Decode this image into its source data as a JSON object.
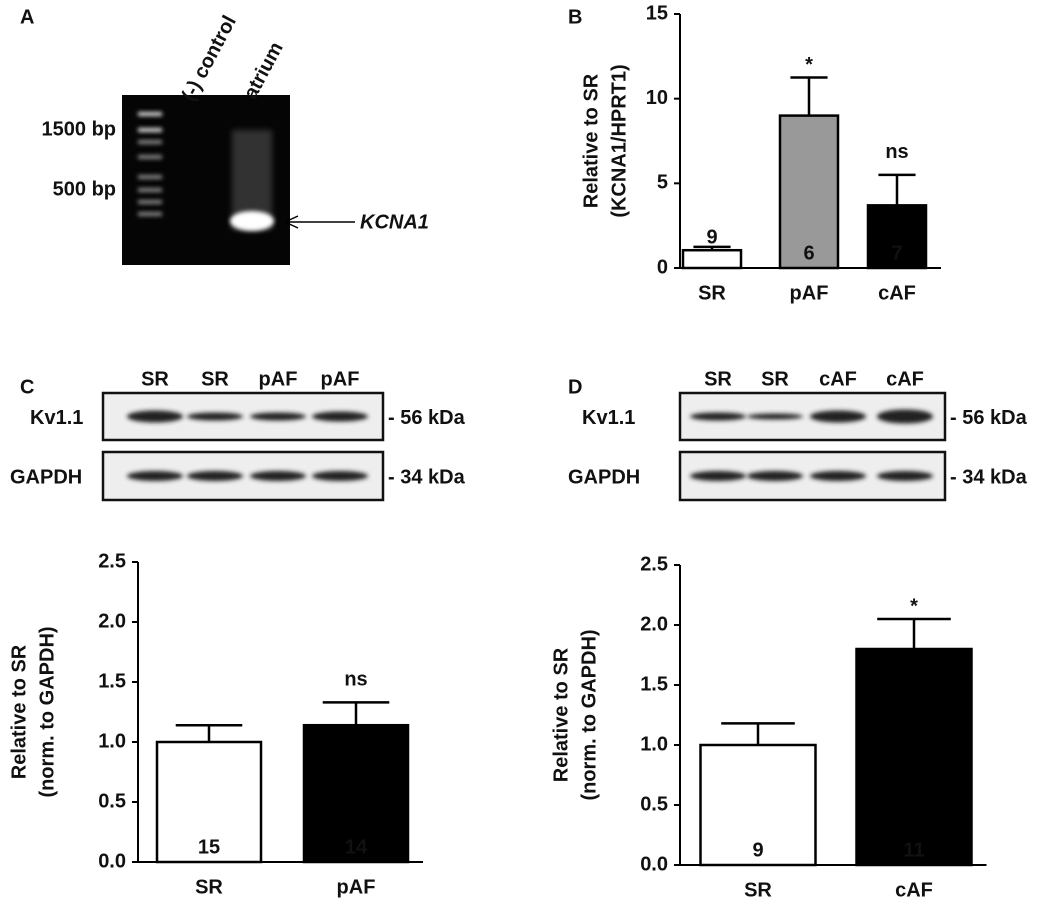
{
  "panel_labels": [
    "A",
    "B",
    "C",
    "D"
  ],
  "gel_a": {
    "lanes": [
      "(-) control",
      "atrium"
    ],
    "markers": [
      "1500 bp",
      "500 bp"
    ],
    "band_label": "KCNA1"
  },
  "blot_c": {
    "lanes": [
      "SR",
      "SR",
      "pAF",
      "pAF"
    ],
    "rows": [
      {
        "name": "Kv1.1",
        "size": "- 56 kDa"
      },
      {
        "name": "GAPDH",
        "size": "- 34 kDa"
      }
    ]
  },
  "blot_d": {
    "lanes": [
      "SR",
      "SR",
      "cAF",
      "cAF"
    ],
    "rows": [
      {
        "name": "Kv1.1",
        "size": "- 56 kDa"
      },
      {
        "name": "GAPDH",
        "size": "- 34 kDa"
      }
    ]
  },
  "chart_data": [
    {
      "type": "bar",
      "ylabel": [
        "Relative to SR",
        "(KCNA1/HPRT1)"
      ],
      "categories": [
        "SR",
        "pAF",
        "cAF"
      ],
      "values": [
        1.05,
        9.0,
        3.7
      ],
      "errors": [
        0.2,
        2.25,
        1.8
      ],
      "colors": [
        "#ffffff",
        "#999999",
        "#000000"
      ],
      "n_labels": [
        "9",
        "6",
        "7"
      ],
      "annotations": [
        {
          "index": 1,
          "text": "*"
        },
        {
          "index": 2,
          "text": "ns"
        }
      ],
      "ylim": [
        0,
        15
      ],
      "yticks": [
        0,
        5,
        10,
        15
      ]
    },
    {
      "type": "bar",
      "ylabel": [
        "Relative to SR",
        "(norm. to GAPDH)"
      ],
      "categories": [
        "SR",
        "pAF"
      ],
      "values": [
        1.0,
        1.14
      ],
      "errors": [
        0.14,
        0.19
      ],
      "colors": [
        "#ffffff",
        "#000000"
      ],
      "n_labels": [
        "15",
        "14"
      ],
      "annotations": [
        {
          "index": 1,
          "text": "ns"
        }
      ],
      "ylim": [
        0,
        2.5
      ],
      "yticks": [
        {
          "value": 0,
          "label": "0.0"
        },
        {
          "value": 0.5,
          "label": "0.5"
        },
        {
          "value": 1,
          "label": "1.0"
        },
        {
          "value": 1.5,
          "label": "1.5"
        },
        {
          "value": 2,
          "label": "2.0"
        },
        {
          "value": 2.5,
          "label": "2.5"
        }
      ]
    },
    {
      "type": "bar",
      "ylabel": [
        "Relative to SR",
        "(norm. to GAPDH)"
      ],
      "categories": [
        "SR",
        "cAF"
      ],
      "values": [
        1.0,
        1.8
      ],
      "errors": [
        0.18,
        0.25
      ],
      "colors": [
        "#ffffff",
        "#000000"
      ],
      "n_labels": [
        "9",
        "11"
      ],
      "annotations": [
        {
          "index": 1,
          "text": "*"
        }
      ],
      "ylim": [
        0,
        2.5
      ],
      "yticks": [
        {
          "value": 0,
          "label": "0.0"
        },
        {
          "value": 0.5,
          "label": "0.5"
        },
        {
          "value": 1,
          "label": "1.0"
        },
        {
          "value": 1.5,
          "label": "1.5"
        },
        {
          "value": 2,
          "label": "2.0"
        },
        {
          "value": 2.5,
          "label": "2.5"
        }
      ]
    }
  ]
}
